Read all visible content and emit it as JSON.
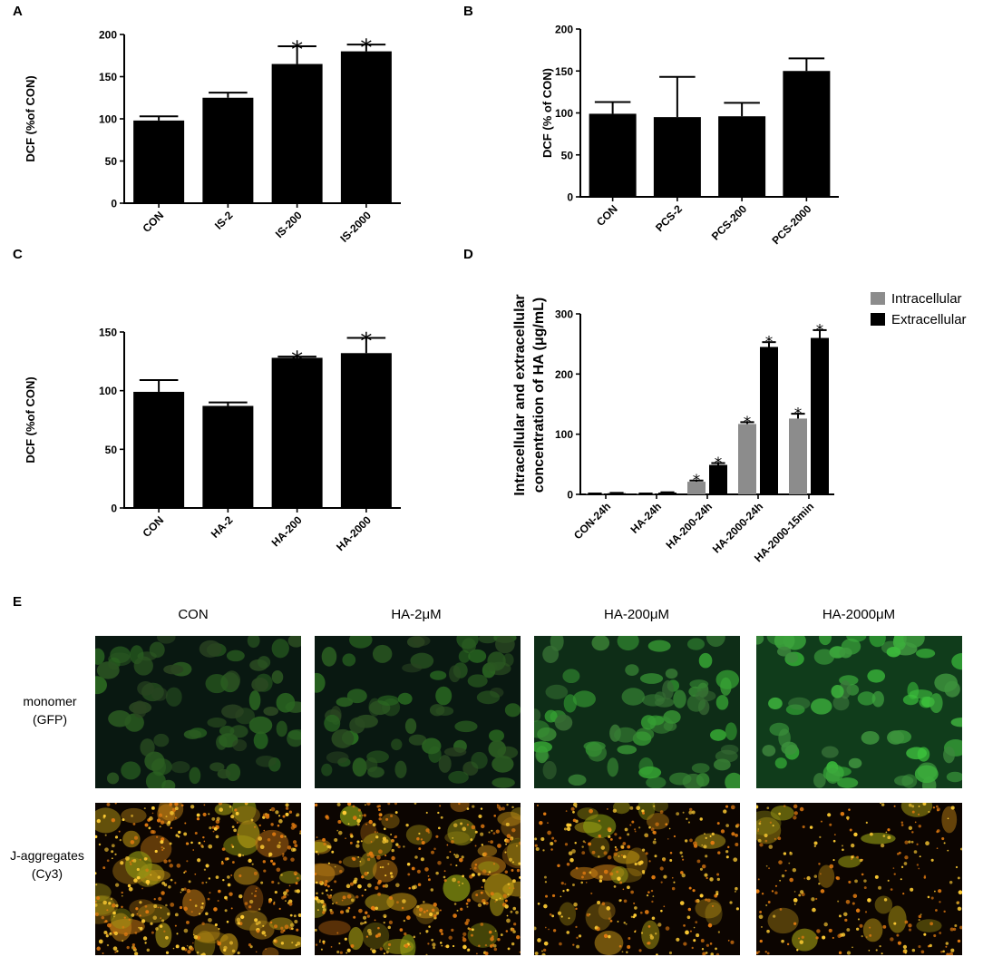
{
  "panels": {
    "A": "A",
    "B": "B",
    "C": "C",
    "D": "D",
    "E": "E"
  },
  "chart_data": [
    {
      "id": "A",
      "type": "bar",
      "ylabel": "DCF (%of CON)",
      "ylim": [
        0,
        200
      ],
      "yticks": [
        0,
        50,
        100,
        150,
        200
      ],
      "categories": [
        "CON",
        "IS-2",
        "IS-200",
        "IS-2000"
      ],
      "values": [
        98,
        125,
        165,
        180
      ],
      "errors": [
        5,
        6,
        21,
        8
      ],
      "significant": [
        false,
        false,
        true,
        true
      ],
      "sig_marker": "*"
    },
    {
      "id": "B",
      "type": "bar",
      "ylabel": "DCF (% of CON)",
      "ylim": [
        0,
        200
      ],
      "yticks": [
        0,
        50,
        100,
        150,
        200
      ],
      "categories": [
        "CON",
        "PCS-2",
        "PCS-200",
        "PCS-2000"
      ],
      "values": [
        99,
        95,
        96,
        150
      ],
      "errors": [
        14,
        48,
        16,
        15
      ],
      "significant": [
        false,
        false,
        false,
        false
      ],
      "sig_marker": "*"
    },
    {
      "id": "C",
      "type": "bar",
      "ylabel": "DCF (%of CON)",
      "ylim": [
        0,
        150
      ],
      "yticks": [
        0,
        50,
        100,
        150
      ],
      "categories": [
        "CON",
        "HA-2",
        "HA-200",
        "HA-2000"
      ],
      "values": [
        99,
        87,
        128,
        132
      ],
      "errors": [
        10,
        3,
        1,
        13
      ],
      "significant": [
        false,
        false,
        true,
        true
      ],
      "sig_marker": "*"
    },
    {
      "id": "D",
      "type": "bar",
      "ylabel_lines": [
        "Intracellular and extracellular",
        "concentration of HA (μg/mL)"
      ],
      "ylim": [
        0,
        300
      ],
      "yticks": [
        0,
        100,
        200,
        300
      ],
      "categories": [
        "CON-24h",
        "HA-24h",
        "HA-200-24h",
        "HA-2000-24h",
        "HA-2000-15min"
      ],
      "series": [
        {
          "name": "Intracellular",
          "color": "#8c8c8c",
          "values": [
            1,
            1,
            21,
            117,
            126
          ],
          "errors": [
            0.5,
            0.5,
            2,
            3,
            8
          ],
          "significant": [
            false,
            false,
            true,
            true,
            true
          ]
        },
        {
          "name": "Extracellular",
          "color": "#000000",
          "values": [
            2,
            3,
            49,
            245,
            260
          ],
          "errors": [
            0.5,
            0.5,
            3,
            8,
            13
          ],
          "significant": [
            false,
            false,
            true,
            true,
            true
          ]
        }
      ],
      "sig_marker": "*",
      "legend": "top-right"
    }
  ],
  "micrographs": {
    "columns": [
      "CON",
      "HA-2μM",
      "HA-200μM",
      "HA-2000μM"
    ],
    "rows": [
      {
        "label_line1": "monomer",
        "label_line2": "(GFP)",
        "channel": "green"
      },
      {
        "label_line1": "J-aggregates",
        "label_line2": "(Cy3)",
        "channel": "orange"
      }
    ],
    "green_brightness": [
      0.55,
      0.55,
      0.85,
      1.0
    ],
    "orange_density": [
      1.0,
      1.0,
      0.55,
      0.35
    ]
  }
}
